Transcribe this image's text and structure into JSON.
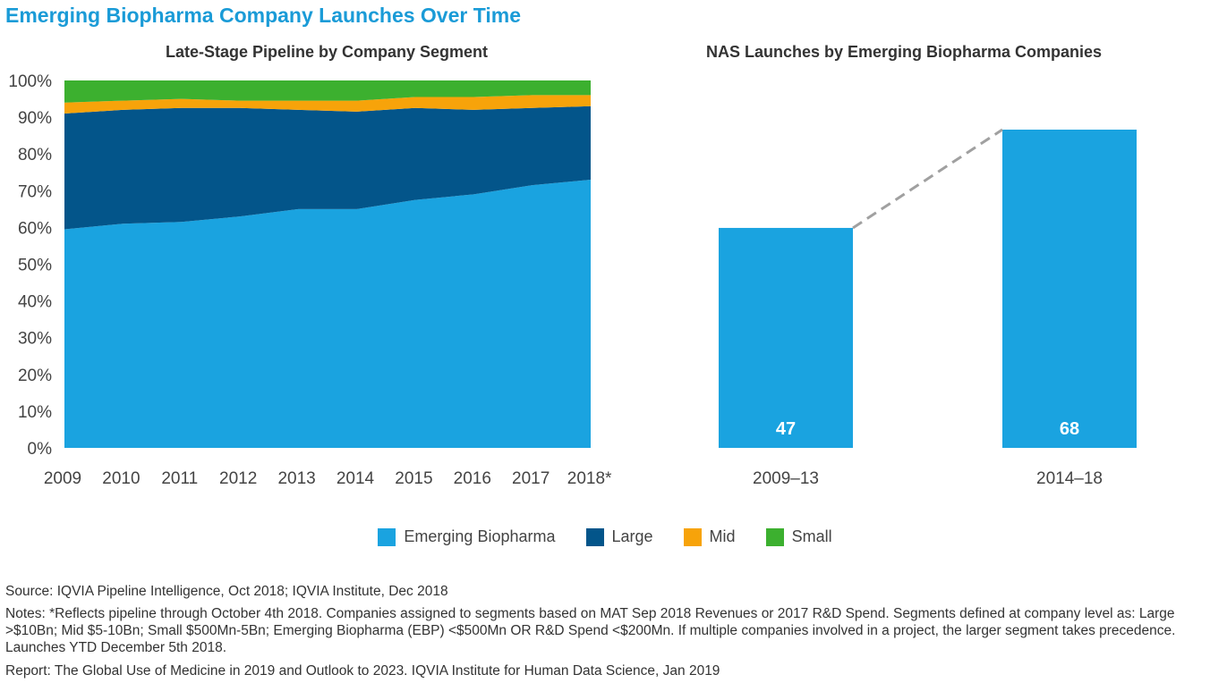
{
  "title": "Emerging Biopharma Company Launches Over Time",
  "colors": {
    "ebp": "#1aa3e0",
    "large": "#03558a",
    "mid": "#f7a30a",
    "small": "#3cb02f",
    "dash": "#a0a0a0"
  },
  "chart_data": [
    {
      "type": "area",
      "stacked": true,
      "title": "Late-Stage Pipeline by Company Segment",
      "categories": [
        "2009",
        "2010",
        "2011",
        "2012",
        "2013",
        "2014",
        "2015",
        "2016",
        "2017",
        "2018*"
      ],
      "ylim": [
        0,
        100
      ],
      "yticks": [
        "0%",
        "10%",
        "20%",
        "30%",
        "40%",
        "50%",
        "60%",
        "70%",
        "80%",
        "90%",
        "100%"
      ],
      "series": [
        {
          "name": "Emerging Biopharma",
          "values": [
            59.5,
            61,
            61.5,
            63,
            65,
            65,
            67.5,
            69,
            71.5,
            73
          ]
        },
        {
          "name": "Large",
          "values": [
            31.5,
            31,
            31,
            29.5,
            27,
            26.5,
            25,
            23,
            21,
            20
          ]
        },
        {
          "name": "Mid",
          "values": [
            3,
            2.5,
            2.5,
            2,
            2.5,
            3,
            3,
            3.5,
            3.5,
            3
          ]
        },
        {
          "name": "Small",
          "values": [
            6,
            5.5,
            5,
            5.5,
            5.5,
            5.5,
            4.5,
            4.5,
            4,
            4
          ]
        }
      ],
      "grid": false,
      "legend": "bottom-center"
    },
    {
      "type": "bar",
      "title": "NAS Launches by Emerging Biopharma Companies",
      "categories": [
        "2009–13",
        "2014–18"
      ],
      "values": [
        47,
        68
      ],
      "data_labels": [
        "47",
        "68"
      ],
      "connector": "dashed"
    }
  ],
  "legend": [
    {
      "label": "Emerging Biopharma",
      "color_key": "ebp"
    },
    {
      "label": "Large",
      "color_key": "large"
    },
    {
      "label": "Mid",
      "color_key": "mid"
    },
    {
      "label": "Small",
      "color_key": "small"
    }
  ],
  "footer": {
    "source": "Source: IQVIA Pipeline Intelligence, Oct 2018; IQVIA Institute, Dec 2018",
    "notes": "Notes: *Reflects pipeline through October 4th 2018. Companies assigned to segments based on MAT Sep 2018 Revenues or 2017 R&D Spend. Segments defined at company level as: Large >$10Bn; Mid $5-10Bn; Small $500Mn-5Bn; Emerging Biopharma (EBP) <$500Mn OR R&D Spend <$200Mn. If multiple companies involved in a project, the larger segment takes precedence. Launches YTD December 5th 2018.",
    "report": "Report: The Global Use of Medicine in 2019 and Outlook to 2023. IQVIA Institute for Human Data Science, Jan 2019"
  }
}
